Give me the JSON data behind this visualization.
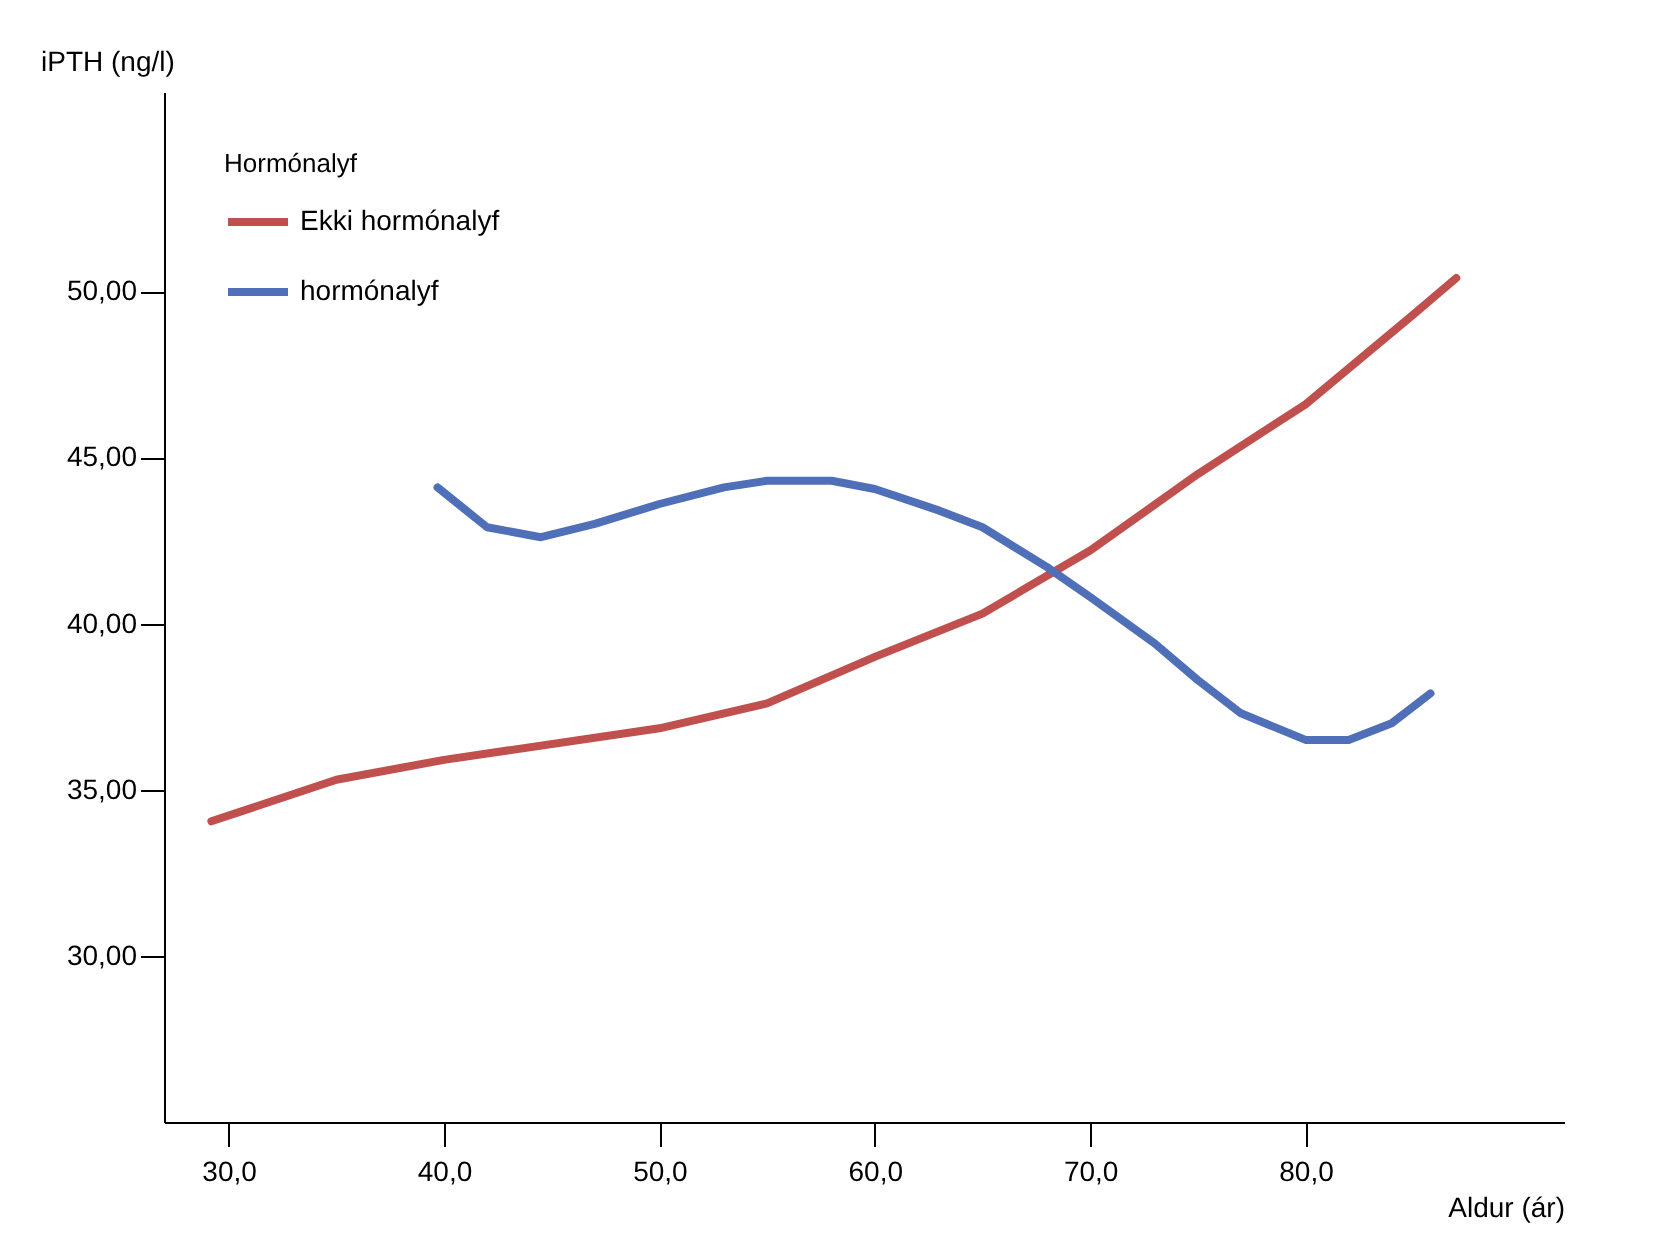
{
  "chart_data": {
    "type": "line",
    "xlabel": "Aldur (ár)",
    "ylabel": "iPTH (ng/l)",
    "legend_title": "Hormónalyf",
    "legend": "top left",
    "grid": false,
    "line_style": "solid",
    "marker": "none",
    "xlim": [
      27,
      92
    ],
    "ylim": [
      25,
      56
    ],
    "xticks": [
      {
        "value": 30,
        "label": "30,0"
      },
      {
        "value": 40,
        "label": "40,0"
      },
      {
        "value": 50,
        "label": "50,0"
      },
      {
        "value": 60,
        "label": "60,0"
      },
      {
        "value": 70,
        "label": "70,0"
      },
      {
        "value": 80,
        "label": "80,0"
      }
    ],
    "yticks": [
      {
        "value": 30,
        "label": "30,00"
      },
      {
        "value": 35,
        "label": "35,00"
      },
      {
        "value": 40,
        "label": "40,00"
      },
      {
        "value": 45,
        "label": "45,00"
      },
      {
        "value": 50,
        "label": "50,00"
      }
    ],
    "series": [
      {
        "name": "Ekki hormónalyf",
        "color": "#c0504d",
        "x": [
          29.2,
          35,
          40,
          50,
          55,
          60,
          65,
          70,
          75,
          80,
          85,
          87
        ],
        "values": [
          34.05,
          35.3,
          35.9,
          36.85,
          37.6,
          39.0,
          40.3,
          42.2,
          44.5,
          46.6,
          49.3,
          50.4
        ]
      },
      {
        "name": "hormónalyf",
        "color": "#4f6fb8",
        "x": [
          39.7,
          42,
          44.5,
          47,
          50,
          53,
          55,
          58,
          60,
          63,
          65,
          68,
          70,
          73,
          75,
          77,
          80,
          82,
          84,
          85.8
        ],
        "values": [
          44.1,
          42.9,
          42.6,
          43.0,
          43.6,
          44.1,
          44.3,
          44.3,
          44.05,
          43.4,
          42.9,
          41.7,
          40.8,
          39.4,
          38.3,
          37.3,
          36.5,
          36.5,
          37.0,
          37.9
        ]
      }
    ]
  }
}
